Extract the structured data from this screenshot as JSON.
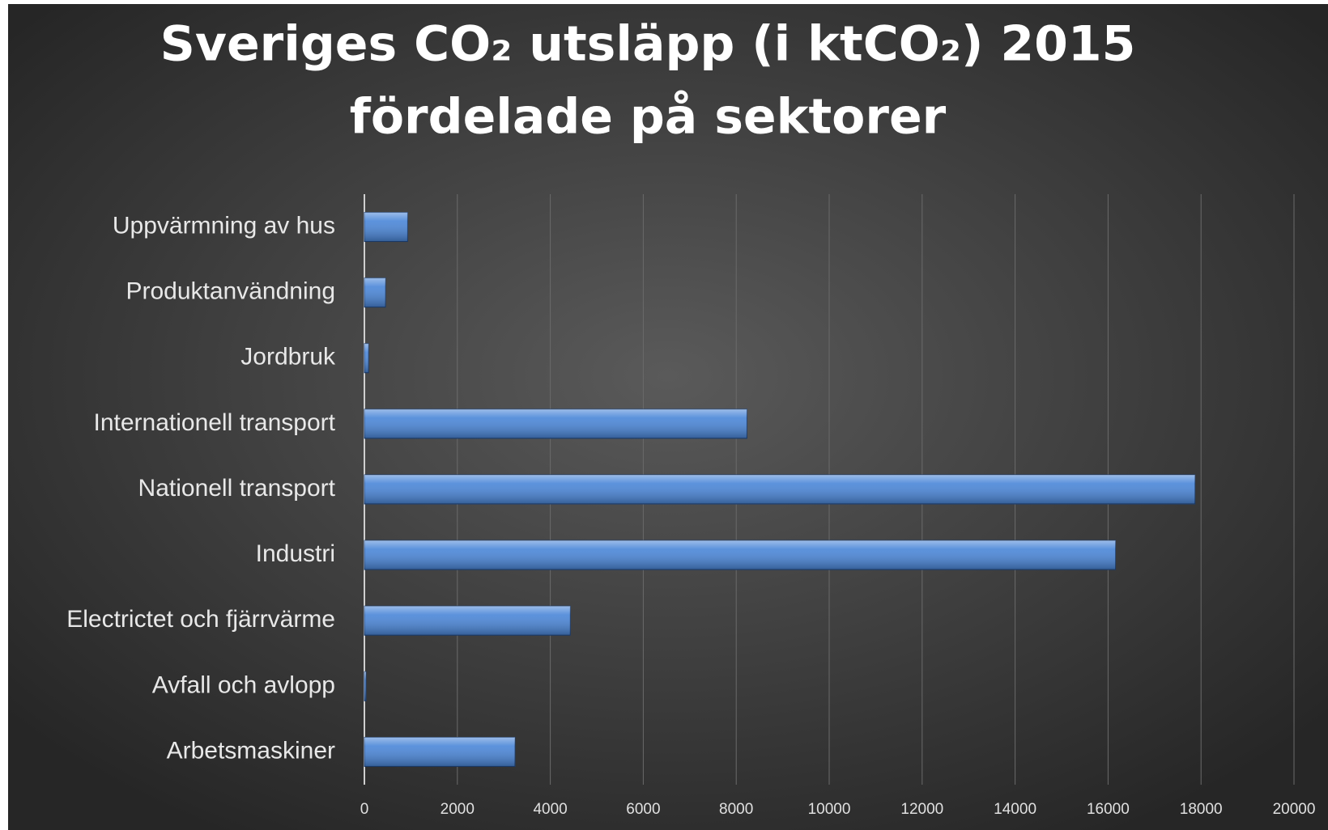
{
  "chart_data": {
    "type": "bar",
    "orientation": "horizontal",
    "title": [
      "Sveriges CO₂ utsläpp (i ktCO₂) 2015",
      "fördelade på sektorer"
    ],
    "categories": [
      "Uppvärmning av hus",
      "Produktanvändning",
      "Jordbruk",
      "Internationell transport",
      "Nationell transport",
      "Industri",
      "Electrictet och fjärrvärme",
      "Avfall och avlopp",
      "Arbetsmaskiner"
    ],
    "values": [
      930,
      455,
      90,
      8230,
      17870,
      16160,
      4430,
      35,
      3240
    ],
    "color": "#4a86d8",
    "xlim": [
      0,
      20000
    ],
    "xticks": [
      0,
      2000,
      4000,
      6000,
      8000,
      10000,
      12000,
      14000,
      16000,
      18000,
      20000
    ],
    "grid": true
  }
}
